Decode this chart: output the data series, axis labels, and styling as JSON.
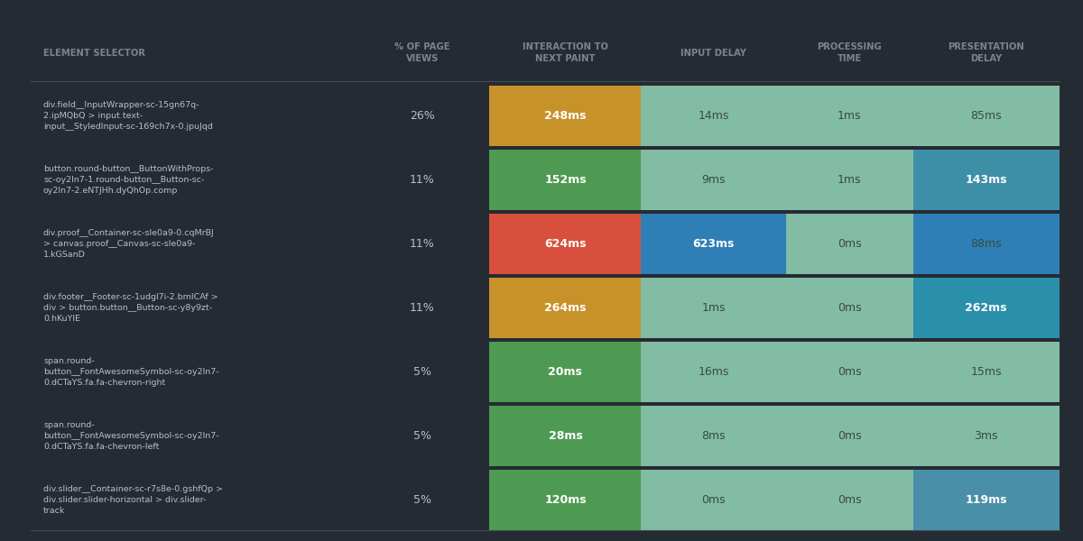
{
  "background_color": "#252b33",
  "text_color_light": "#b8bec6",
  "header_text_color": "#7a8390",
  "cell_text_dark": "#3a4550",
  "row_separator_color": "#1e242b",
  "figsize": [
    12.0,
    6.0
  ],
  "dpi": 100,
  "col_headers": [
    "% OF PAGE\nVIEWS",
    "INTERACTION TO\nNEXT PAINT",
    "INPUT DELAY",
    "PROCESSING\nTIME",
    "PRESENTATION\nDELAY"
  ],
  "row_header": "ELEMENT SELECTOR",
  "rows": [
    {
      "selector": "div.field__InputWrapper-sc-15gn67q-\n2.ipMQbQ > input.text-\ninput__StyledInput-sc-169ch7x-0.jpuJqd",
      "pct": "26%",
      "inp": "248ms",
      "input_delay": "14ms",
      "processing": "1ms",
      "presentation": "85ms",
      "inp_color": "#c8922a",
      "input_delay_color": "#82bca4",
      "processing_color": "#82bca4",
      "presentation_color": "#82bca4",
      "inp_highlight": true,
      "input_delay_highlight": false,
      "processing_highlight": false,
      "presentation_highlight": false
    },
    {
      "selector": "button.round-button__ButtonWithProps-\nsc-oy2ln7-1.round-button__Button-sc-\noy2ln7-2.eNTJHh.dyQhOp.comp",
      "pct": "11%",
      "inp": "152ms",
      "input_delay": "9ms",
      "processing": "1ms",
      "presentation": "143ms",
      "inp_color": "#4f9a52",
      "input_delay_color": "#82bca4",
      "processing_color": "#82bca4",
      "presentation_color": "#3d8fa8",
      "inp_highlight": true,
      "input_delay_highlight": false,
      "processing_highlight": false,
      "presentation_highlight": true
    },
    {
      "selector": "div.proof__Container-sc-sle0a9-0.cqMrBJ\n> canvas.proof__Canvas-sc-sle0a9-\n1.kGSanD",
      "pct": "11%",
      "inp": "624ms",
      "input_delay": "623ms",
      "processing": "0ms",
      "presentation": "88ms",
      "inp_color": "#d94f3d",
      "input_delay_color": "#2e7fb5",
      "processing_color": "#82bca4",
      "presentation_color": "#82bca4",
      "inp_highlight": true,
      "input_delay_highlight": true,
      "processing_highlight": false,
      "presentation_highlight": false
    },
    {
      "selector": "div.footer__Footer-sc-1udgl7i-2.bmICAf >\ndiv > button.button__Button-sc-y8y9zt-\n0.hKuYIE",
      "pct": "11%",
      "inp": "264ms",
      "input_delay": "1ms",
      "processing": "0ms",
      "presentation": "262ms",
      "inp_color": "#c8922a",
      "input_delay_color": "#82bca4",
      "processing_color": "#82bca4",
      "presentation_color": "#2a8fa8",
      "inp_highlight": true,
      "input_delay_highlight": false,
      "processing_highlight": false,
      "presentation_highlight": true
    },
    {
      "selector": "span.round-\nbutton__FontAwesomeSymbol-sc-oy2ln7-\n0.dCTaYS.fa.fa-chevron-right",
      "pct": "5%",
      "inp": "20ms",
      "input_delay": "16ms",
      "processing": "0ms",
      "presentation": "15ms",
      "inp_color": "#4f9a52",
      "input_delay_color": "#82bca4",
      "processing_color": "#82bca4",
      "presentation_color": "#82bca4",
      "inp_highlight": true,
      "input_delay_highlight": false,
      "processing_highlight": false,
      "presentation_highlight": false
    },
    {
      "selector": "span.round-\nbutton__FontAwesomeSymbol-sc-oy2ln7-\n0.dCTaYS.fa.fa-chevron-left",
      "pct": "5%",
      "inp": "28ms",
      "input_delay": "8ms",
      "processing": "0ms",
      "presentation": "3ms",
      "inp_color": "#4f9a52",
      "input_delay_color": "#82bca4",
      "processing_color": "#82bca4",
      "presentation_color": "#82bca4",
      "inp_highlight": true,
      "input_delay_highlight": false,
      "processing_highlight": false,
      "presentation_highlight": false
    },
    {
      "selector": "div.slider__Container-sc-r7s8e-0.gshfQp >\ndiv.slider.slider-horizontal > div.slider-\ntrack",
      "pct": "5%",
      "inp": "120ms",
      "input_delay": "0ms",
      "processing": "0ms",
      "presentation": "119ms",
      "inp_color": "#4f9a52",
      "input_delay_color": "#82bca4",
      "processing_color": "#82bca4",
      "presentation_color": "#4a8fa8",
      "inp_highlight": true,
      "input_delay_highlight": false,
      "processing_highlight": false,
      "presentation_highlight": true
    }
  ]
}
